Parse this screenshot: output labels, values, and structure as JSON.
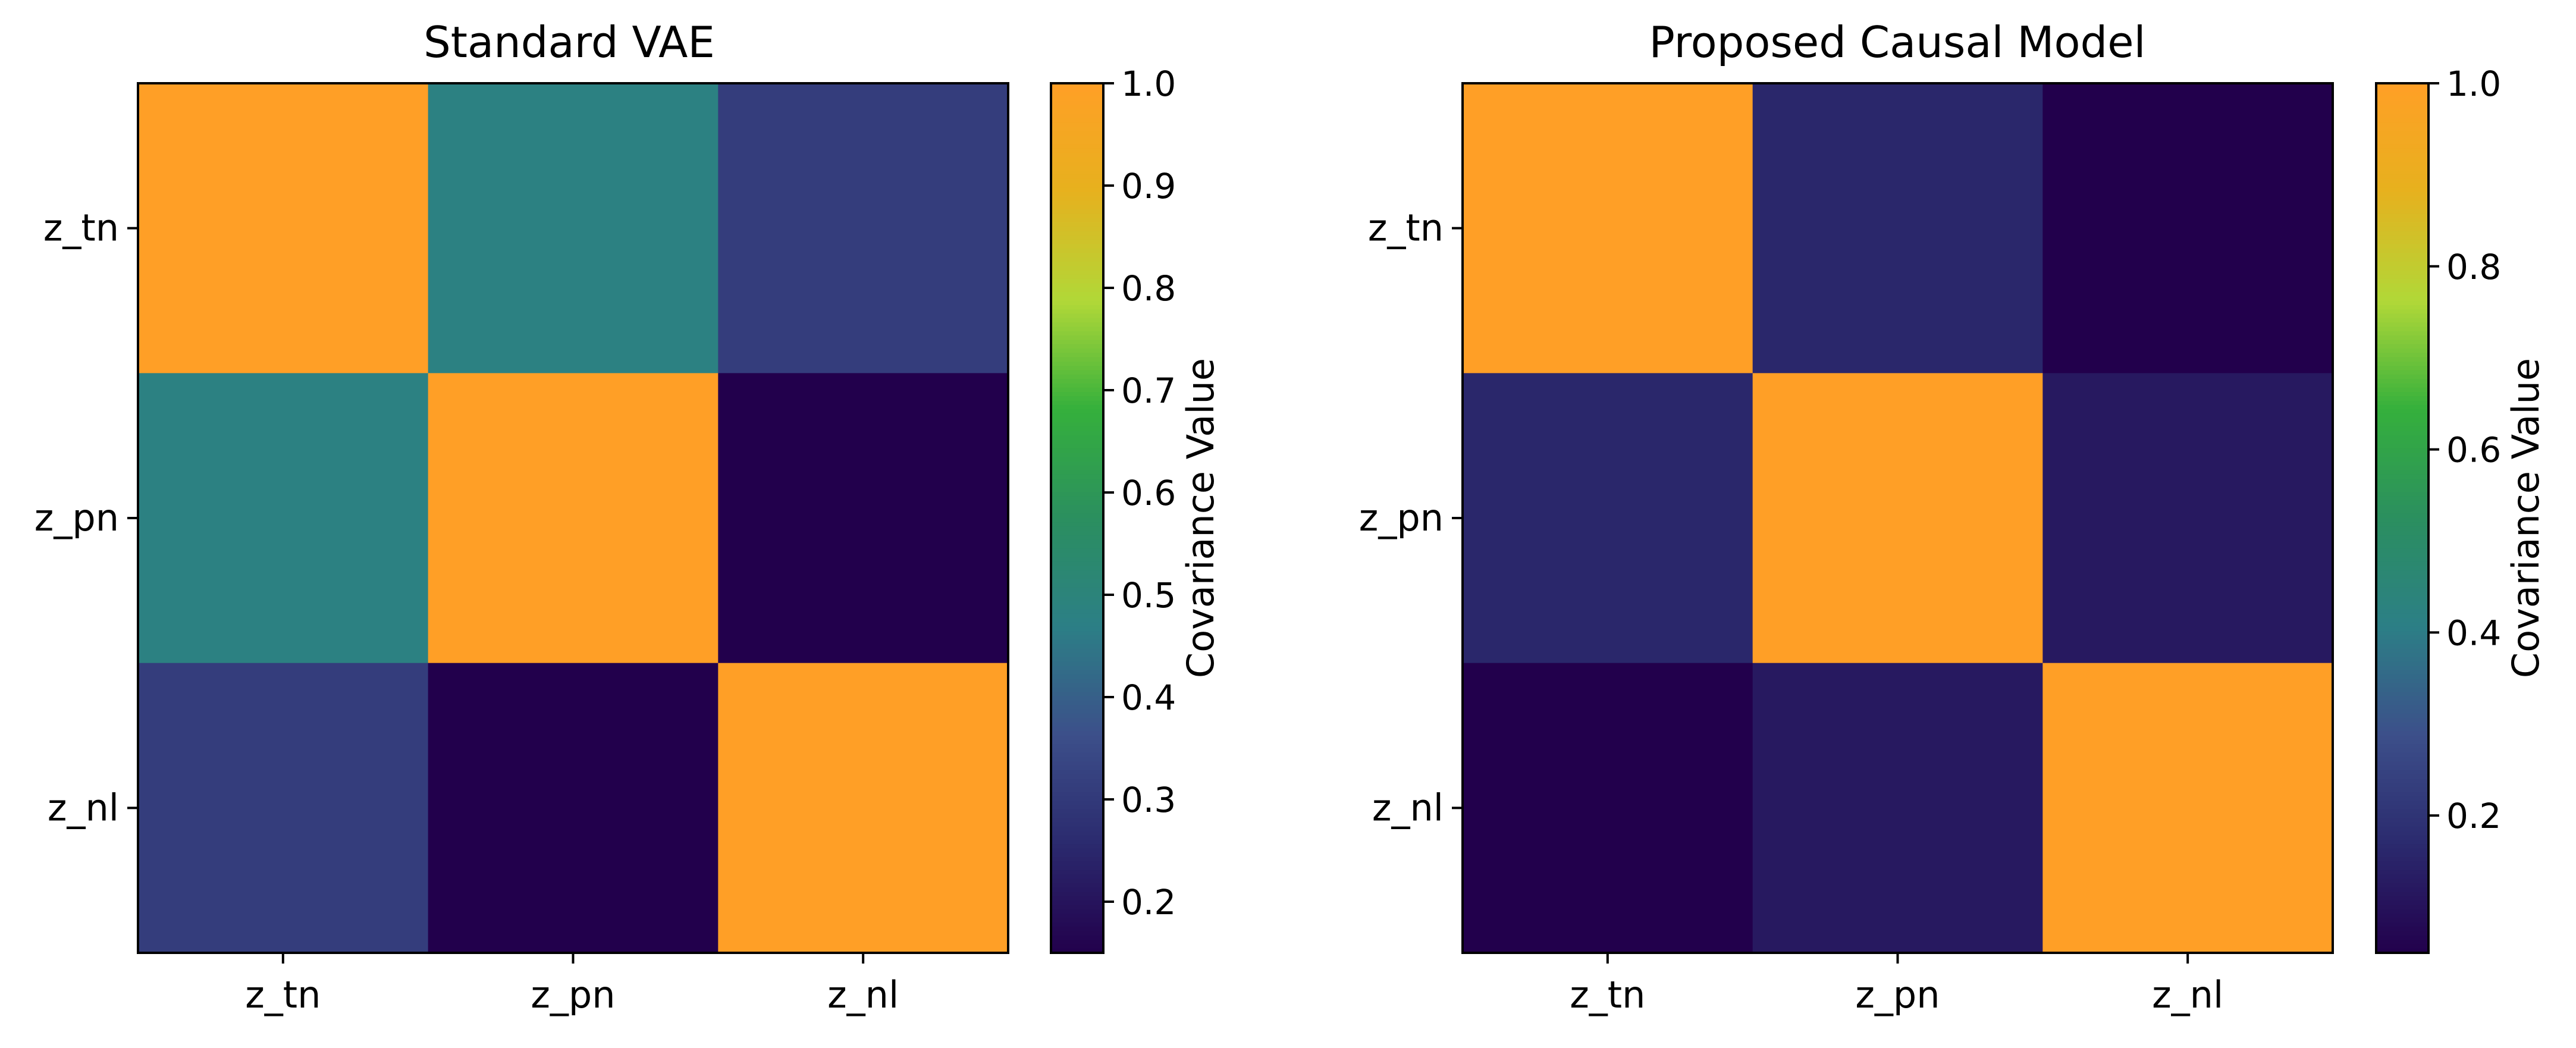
{
  "chart_data": [
    {
      "type": "heatmap",
      "title": "Standard VAE",
      "x_labels": [
        "z_tn",
        "z_pn",
        "z_nl"
      ],
      "y_labels": [
        "z_tn",
        "z_pn",
        "z_nl"
      ],
      "values": [
        [
          1.0,
          0.48,
          0.31
        ],
        [
          0.48,
          1.0,
          0.15
        ],
        [
          0.31,
          0.15,
          1.0
        ]
      ],
      "colorbar": {
        "label": "Covariance Value",
        "range": [
          0.15,
          1.0
        ],
        "ticks": [
          0.2,
          0.3,
          0.4,
          0.5,
          0.6,
          0.7,
          0.8,
          0.9,
          1.0
        ],
        "tick_labels": [
          "0.2",
          "0.3",
          "0.4",
          "0.5",
          "0.6",
          "0.7",
          "0.8",
          "0.9",
          "1.0"
        ]
      },
      "colormap_stops": [
        "#22004c",
        "#2b2a6e",
        "#3c4f8a",
        "#2c7f86",
        "#2b8f5f",
        "#35b03c",
        "#b1d838",
        "#e6b11e",
        "#ff9f26"
      ]
    },
    {
      "type": "heatmap",
      "title": "Proposed Causal Model",
      "x_labels": [
        "z_tn",
        "z_pn",
        "z_nl"
      ],
      "y_labels": [
        "z_tn",
        "z_pn",
        "z_nl"
      ],
      "values": [
        [
          1.0,
          0.16,
          0.05
        ],
        [
          0.16,
          1.0,
          0.12
        ],
        [
          0.05,
          0.12,
          1.0
        ]
      ],
      "colorbar": {
        "label": "Covariance Value",
        "range": [
          0.05,
          1.0
        ],
        "ticks": [
          0.2,
          0.4,
          0.6,
          0.8,
          1.0
        ],
        "tick_labels": [
          "0.2",
          "0.4",
          "0.6",
          "0.8",
          "1.0"
        ]
      },
      "colormap_stops": [
        "#22004c",
        "#2b2a6e",
        "#3c4f8a",
        "#2c7f86",
        "#2b8f5f",
        "#35b03c",
        "#b1d838",
        "#e6b11e",
        "#ff9f26"
      ]
    }
  ]
}
